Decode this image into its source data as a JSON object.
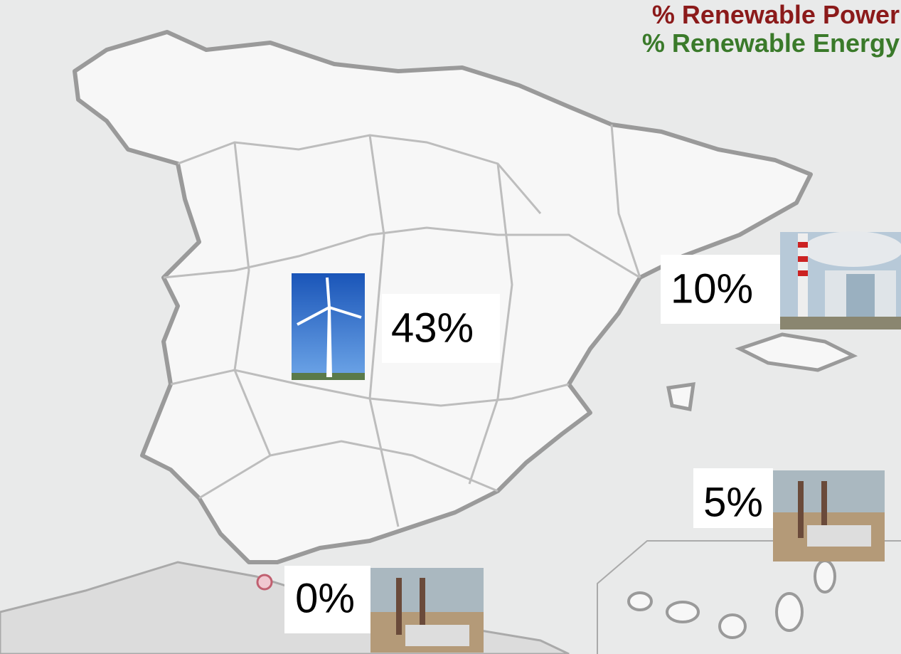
{
  "legend": {
    "power": "% Renewable Power",
    "energy": "% Renewable Energy"
  },
  "labels": [
    {
      "text": "43%"
    },
    {
      "text": "10%"
    },
    {
      "text": "5%"
    },
    {
      "text": "0%"
    }
  ]
}
